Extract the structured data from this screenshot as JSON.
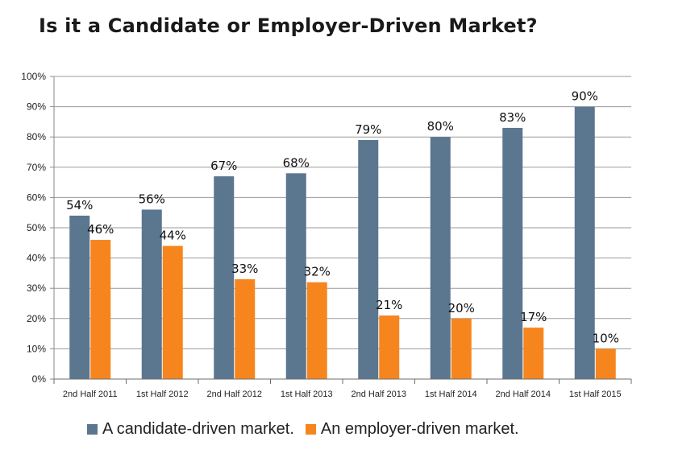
{
  "chart_data": {
    "type": "bar",
    "title": "Is it a Candidate or Employer-Driven Market?",
    "categories": [
      "2nd Half 2011",
      "1st Half 2012",
      "2nd Half 2012",
      "1st Half 2013",
      "2nd Half 2013",
      "1st Half 2014",
      "2nd Half 2014",
      "1st Half 2015"
    ],
    "series": [
      {
        "name": "A candidate-driven market.",
        "color": "#5b768f",
        "values": [
          54,
          56,
          67,
          68,
          79,
          80,
          83,
          90
        ],
        "labels": [
          "54%",
          "56%",
          "67%",
          "68%",
          "79%",
          "80%",
          "83%",
          "90%"
        ]
      },
      {
        "name": "An employer-driven market.",
        "color": "#f7851e",
        "values": [
          46,
          44,
          33,
          32,
          21,
          20,
          17,
          10
        ],
        "labels": [
          "46%",
          "44%",
          "33%",
          "32%",
          "21%",
          "20%",
          "17%",
          "10%"
        ]
      }
    ],
    "yticks": [
      "0%",
      "10%",
      "20%",
      "30%",
      "40%",
      "50%",
      "60%",
      "70%",
      "80%",
      "90%",
      "100%"
    ],
    "ylim": [
      0,
      100
    ],
    "xlabel": "",
    "ylabel": "",
    "grid": true,
    "legend_position": "bottom"
  }
}
